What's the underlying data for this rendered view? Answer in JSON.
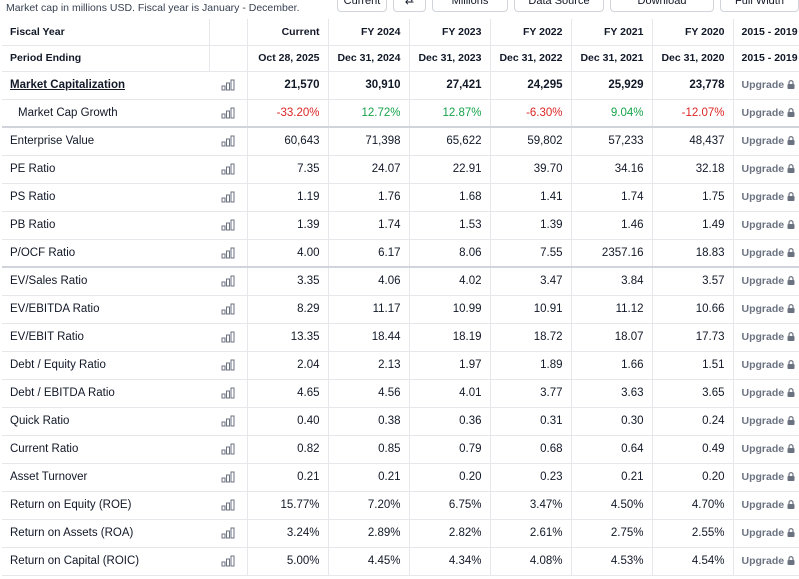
{
  "note": "Market cap in millions USD. Fiscal year is January - December.",
  "toolbar": {
    "current": "Current",
    "swap_icon": "⇄",
    "millions": "Millions",
    "data_source": "Data Source",
    "download": "Download",
    "full_width": "Full Width"
  },
  "header": {
    "fiscal_year_label": "Fiscal Year",
    "period_label": "Period Ending",
    "columns": [
      {
        "fy": "Current",
        "period": "Oct 28, 2025"
      },
      {
        "fy": "FY 2024",
        "period": "Dec 31, 2024"
      },
      {
        "fy": "FY 2023",
        "period": "Dec 31, 2023"
      },
      {
        "fy": "FY 2022",
        "period": "Dec 31, 2022"
      },
      {
        "fy": "FY 2021",
        "period": "Dec 31, 2021"
      },
      {
        "fy": "FY 2020",
        "period": "Dec 31, 2020"
      },
      {
        "fy": "2015 - 2019",
        "period": "2015 - 2019"
      }
    ]
  },
  "upgrade_label": "Upgrade",
  "colors": {
    "negative": "#dc2626",
    "positive": "#16a34a"
  },
  "rows": [
    {
      "label": "Market Capitalization",
      "values": [
        "21,570",
        "30,910",
        "27,421",
        "24,295",
        "25,929",
        "23,778"
      ]
    },
    {
      "label": "Market Cap Growth",
      "values": [
        "-33.20%",
        "12.72%",
        "12.87%",
        "-6.30%",
        "9.04%",
        "-12.07%"
      ]
    },
    {
      "label": "Enterprise Value",
      "values": [
        "60,643",
        "71,398",
        "65,622",
        "59,802",
        "57,233",
        "48,437"
      ]
    },
    {
      "label": "PE Ratio",
      "values": [
        "7.35",
        "24.07",
        "22.91",
        "39.70",
        "34.16",
        "32.18"
      ]
    },
    {
      "label": "PS Ratio",
      "values": [
        "1.19",
        "1.76",
        "1.68",
        "1.41",
        "1.74",
        "1.75"
      ]
    },
    {
      "label": "PB Ratio",
      "values": [
        "1.39",
        "1.74",
        "1.53",
        "1.39",
        "1.46",
        "1.49"
      ]
    },
    {
      "label": "P/OCF Ratio",
      "values": [
        "4.00",
        "6.17",
        "8.06",
        "7.55",
        "2357.16",
        "18.83"
      ]
    },
    {
      "label": "EV/Sales Ratio",
      "values": [
        "3.35",
        "4.06",
        "4.02",
        "3.47",
        "3.84",
        "3.57"
      ]
    },
    {
      "label": "EV/EBITDA Ratio",
      "values": [
        "8.29",
        "11.17",
        "10.99",
        "10.91",
        "11.12",
        "10.66"
      ]
    },
    {
      "label": "EV/EBIT Ratio",
      "values": [
        "13.35",
        "18.44",
        "18.19",
        "18.72",
        "18.07",
        "17.73"
      ]
    },
    {
      "label": "Debt / Equity Ratio",
      "values": [
        "2.04",
        "2.13",
        "1.97",
        "1.89",
        "1.66",
        "1.51"
      ]
    },
    {
      "label": "Debt / EBITDA Ratio",
      "values": [
        "4.65",
        "4.56",
        "4.01",
        "3.77",
        "3.63",
        "3.65"
      ]
    },
    {
      "label": "Quick Ratio",
      "values": [
        "0.40",
        "0.38",
        "0.36",
        "0.31",
        "0.30",
        "0.24"
      ]
    },
    {
      "label": "Current Ratio",
      "values": [
        "0.82",
        "0.85",
        "0.79",
        "0.68",
        "0.64",
        "0.49"
      ]
    },
    {
      "label": "Asset Turnover",
      "values": [
        "0.21",
        "0.21",
        "0.20",
        "0.23",
        "0.21",
        "0.20"
      ]
    },
    {
      "label": "Return on Equity (ROE)",
      "values": [
        "15.77%",
        "7.20%",
        "6.75%",
        "3.47%",
        "4.50%",
        "4.70%"
      ]
    },
    {
      "label": "Return on Assets (ROA)",
      "values": [
        "3.24%",
        "2.89%",
        "2.82%",
        "2.61%",
        "2.75%",
        "2.55%"
      ]
    },
    {
      "label": "Return on Capital (ROIC)",
      "values": [
        "5.00%",
        "4.45%",
        "4.34%",
        "4.08%",
        "4.53%",
        "4.54%"
      ]
    }
  ]
}
